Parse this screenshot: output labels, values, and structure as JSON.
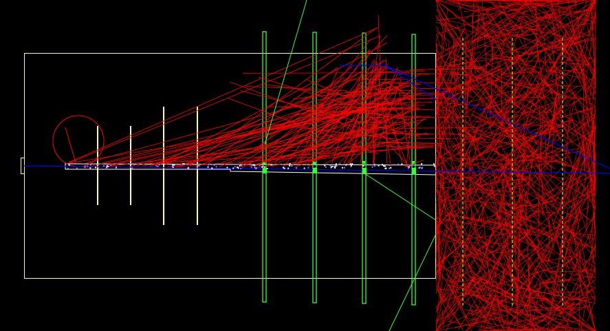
{
  "scene": {
    "background": "#000000",
    "colors": {
      "world_outline": "#ffff80",
      "small_planes": "#ffff80",
      "detector_planes": "#33ff33",
      "tracks": "#ff0000",
      "neutral_track": "#0000ff",
      "axis_line": "#0000ff",
      "hits": "#8080ff",
      "green_ray": "#33ff33",
      "beam_pipe": "#ffffff"
    },
    "labels": []
  }
}
